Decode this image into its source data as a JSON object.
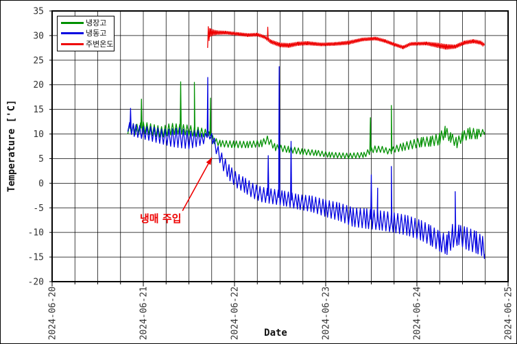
{
  "window": {
    "background": "#ffffff",
    "border_color": "#000000"
  },
  "chart_data": {
    "type": "line",
    "title": "",
    "xlabel": "Date",
    "ylabel": "Temperature ['C]",
    "grid": true,
    "x_axis": {
      "tick_labels": [
        "2024-06-20",
        "2024-06-21",
        "2024-06-22",
        "2024-06-23",
        "2024-06-24",
        "2024-06-25"
      ],
      "range_days": [
        0,
        5
      ],
      "minor_ticks_per_day": 4
    },
    "y_axis": {
      "min": -20,
      "max": 35,
      "tick_step": 5
    },
    "legend": {
      "position": "top-left",
      "entries": [
        {
          "label": "냉장고",
          "color": "#009000"
        },
        {
          "label": "냉동고",
          "color": "#0000e0"
        },
        {
          "label": "주변온도",
          "color": "#ee0000"
        }
      ]
    },
    "annotation": {
      "text": "냉매 주입",
      "color": "#ee0000",
      "arrow": {
        "from": {
          "t": 1.43,
          "value": -5.6
        },
        "to": {
          "t": 1.75,
          "value": 5.2
        }
      }
    },
    "series": [
      {
        "name": "냉장고",
        "color": "#009000",
        "zigzag_period_days": 0.02,
        "envelope": [
          [
            0.83,
            10.0,
            12.3
          ],
          [
            0.93,
            9.8,
            12.0
          ],
          [
            1.0,
            10.2,
            12.5
          ],
          [
            1.1,
            9.6,
            12.0
          ],
          [
            1.2,
            9.3,
            11.5
          ],
          [
            1.3,
            9.8,
            12.2
          ],
          [
            1.4,
            10.0,
            12.0
          ],
          [
            1.5,
            9.7,
            11.8
          ],
          [
            1.6,
            9.4,
            11.4
          ],
          [
            1.68,
            9.4,
            11.0
          ],
          [
            1.74,
            9.2,
            10.2
          ],
          [
            1.78,
            8.0,
            9.2
          ],
          [
            1.85,
            7.4,
            8.7
          ],
          [
            2.0,
            7.2,
            8.6
          ],
          [
            2.15,
            7.2,
            8.5
          ],
          [
            2.3,
            7.4,
            8.8
          ],
          [
            2.36,
            8.2,
            9.6
          ],
          [
            2.45,
            6.6,
            7.9
          ],
          [
            2.6,
            6.2,
            7.5
          ],
          [
            2.75,
            5.8,
            7.0
          ],
          [
            2.9,
            5.6,
            6.7
          ],
          [
            3.05,
            5.2,
            6.3
          ],
          [
            3.25,
            5.0,
            6.1
          ],
          [
            3.42,
            5.2,
            6.3
          ],
          [
            3.52,
            6.2,
            7.6
          ],
          [
            3.62,
            6.3,
            7.5
          ],
          [
            3.7,
            5.8,
            7.0
          ],
          [
            3.76,
            6.3,
            7.6
          ],
          [
            3.85,
            6.6,
            8.2
          ],
          [
            3.95,
            7.0,
            8.8
          ],
          [
            4.05,
            7.4,
            9.3
          ],
          [
            4.15,
            7.5,
            9.5
          ],
          [
            4.25,
            7.8,
            10.2
          ],
          [
            4.31,
            9.3,
            11.6
          ],
          [
            4.37,
            8.3,
            10.3
          ],
          [
            4.44,
            7.2,
            9.2
          ],
          [
            4.5,
            8.5,
            10.5
          ],
          [
            4.58,
            9.0,
            11.3
          ],
          [
            4.66,
            9.0,
            11.0
          ],
          [
            4.74,
            9.9,
            10.9
          ]
        ],
        "spikes": [
          [
            0.98,
            17.1
          ],
          [
            1.41,
            20.6
          ],
          [
            1.56,
            20.5
          ],
          [
            1.737,
            17.3
          ],
          [
            3.49,
            13.3
          ],
          [
            3.72,
            15.8
          ]
        ]
      },
      {
        "name": "냉동고",
        "color": "#0000e0",
        "zigzag_period_days": 0.02,
        "envelope": [
          [
            0.83,
            10.5,
            12.5
          ],
          [
            0.9,
            9.5,
            12.0
          ],
          [
            1.0,
            9.0,
            11.5
          ],
          [
            1.1,
            8.5,
            11.5
          ],
          [
            1.2,
            8.0,
            11.0
          ],
          [
            1.3,
            7.5,
            11.0
          ],
          [
            1.4,
            7.2,
            11.3
          ],
          [
            1.5,
            7.0,
            10.5
          ],
          [
            1.6,
            7.5,
            10.8
          ],
          [
            1.66,
            8.0,
            9.8
          ],
          [
            1.71,
            9.6,
            10.6
          ],
          [
            1.76,
            8.0,
            10.0
          ],
          [
            1.82,
            5.0,
            7.5
          ],
          [
            1.88,
            2.5,
            5.5
          ],
          [
            1.95,
            0.5,
            3.5
          ],
          [
            2.03,
            -1.0,
            2.0
          ],
          [
            2.12,
            -2.0,
            1.0
          ],
          [
            2.2,
            -3.0,
            0.0
          ],
          [
            2.3,
            -3.8,
            -0.8
          ],
          [
            2.42,
            -4.2,
            -1.2
          ],
          [
            2.55,
            -4.6,
            -1.6
          ],
          [
            2.7,
            -5.3,
            -2.3
          ],
          [
            2.85,
            -5.8,
            -2.6
          ],
          [
            3.0,
            -6.8,
            -3.4
          ],
          [
            3.15,
            -7.6,
            -4.0
          ],
          [
            3.3,
            -8.8,
            -5.0
          ],
          [
            3.45,
            -9.2,
            -5.2
          ],
          [
            3.6,
            -9.5,
            -5.6
          ],
          [
            3.75,
            -10.0,
            -6.0
          ],
          [
            3.9,
            -10.6,
            -6.6
          ],
          [
            4.05,
            -11.6,
            -7.6
          ],
          [
            4.15,
            -12.6,
            -8.6
          ],
          [
            4.25,
            -13.8,
            -9.8
          ],
          [
            4.33,
            -14.5,
            -10.5
          ],
          [
            4.4,
            -13.0,
            -8.0
          ],
          [
            4.46,
            -12.5,
            -8.5
          ],
          [
            4.55,
            -13.5,
            -9.0
          ],
          [
            4.65,
            -14.2,
            -9.8
          ],
          [
            4.72,
            -14.8,
            -10.8
          ],
          [
            4.74,
            -15.3,
            -13.5
          ]
        ],
        "spikes": [
          [
            0.86,
            15.2
          ],
          [
            1.707,
            21.5
          ],
          [
            2.37,
            5.6
          ],
          [
            2.49,
            23.7
          ],
          [
            2.62,
            8.5
          ],
          [
            3.5,
            1.7
          ],
          [
            3.57,
            -1.0
          ],
          [
            3.72,
            3.4
          ],
          [
            4.42,
            -1.7
          ]
        ]
      },
      {
        "name": "주변온도",
        "color": "#ee0000",
        "zigzag_period_days": 0.008,
        "envelope": [
          [
            1.705,
            27.5,
            32.0
          ],
          [
            1.73,
            29.8,
            31.4
          ],
          [
            1.8,
            30.2,
            31.0
          ],
          [
            1.9,
            30.3,
            30.9
          ],
          [
            2.05,
            30.0,
            30.6
          ],
          [
            2.15,
            29.8,
            30.4
          ],
          [
            2.25,
            29.9,
            30.5
          ],
          [
            2.33,
            29.4,
            30.0
          ],
          [
            2.4,
            28.4,
            29.1
          ],
          [
            2.5,
            27.7,
            28.5
          ],
          [
            2.6,
            27.6,
            28.4
          ],
          [
            2.7,
            28.0,
            28.7
          ],
          [
            2.8,
            28.1,
            28.8
          ],
          [
            2.95,
            27.9,
            28.5
          ],
          [
            3.1,
            28.0,
            28.6
          ],
          [
            3.25,
            28.2,
            28.9
          ],
          [
            3.4,
            28.9,
            29.5
          ],
          [
            3.55,
            29.1,
            29.7
          ],
          [
            3.65,
            28.6,
            29.2
          ],
          [
            3.75,
            27.9,
            28.5
          ],
          [
            3.85,
            27.3,
            27.9
          ],
          [
            3.93,
            28.0,
            28.6
          ],
          [
            4.1,
            28.1,
            28.7
          ],
          [
            4.22,
            27.6,
            28.5
          ],
          [
            4.32,
            27.2,
            28.2
          ],
          [
            4.42,
            27.4,
            28.1
          ],
          [
            4.52,
            28.2,
            28.9
          ],
          [
            4.62,
            28.5,
            29.2
          ],
          [
            4.7,
            28.2,
            28.9
          ],
          [
            4.74,
            27.6,
            28.4
          ]
        ],
        "spikes": [
          [
            2.365,
            31.7
          ]
        ]
      }
    ]
  }
}
